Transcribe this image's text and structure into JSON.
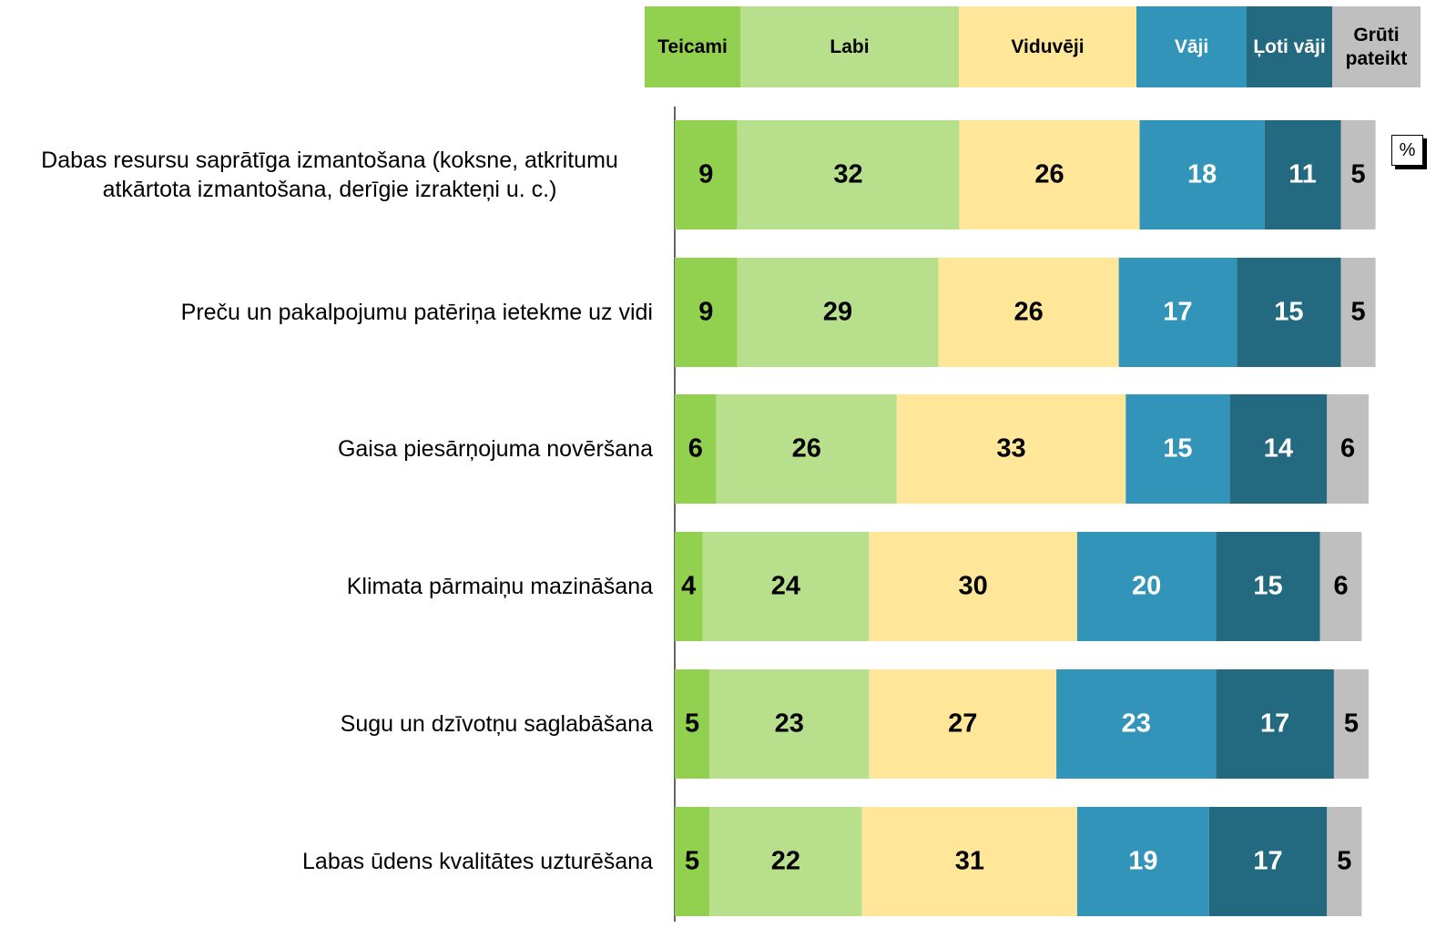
{
  "chart_data": {
    "type": "stacked_bar_horizontal",
    "unit_label": "%",
    "categories": [
      "Dabas resursu saprātīga izmantošana (koksne, atkritumu atkārtota izmantošana, derīgie izrakteņi u. c.)",
      "Preču un pakalpojumu patēriņa ietekme uz vidi",
      "Gaisa piesārņojuma novēršana",
      "Klimata pārmaiņu mazināšana",
      "Sugu un dzīvotņu saglabāšana",
      "Labas ūdens kvalitātes uzturēšana"
    ],
    "xlim": [
      0,
      100
    ],
    "series": [
      {
        "name": "Teicami",
        "color": "#92d050",
        "values": [
          9,
          9,
          6,
          4,
          5,
          5
        ]
      },
      {
        "name": "Labi",
        "color": "#b8e08c",
        "values": [
          32,
          29,
          26,
          24,
          23,
          22
        ]
      },
      {
        "name": "Viduvēji",
        "color": "#ffe699",
        "values": [
          26,
          26,
          33,
          30,
          27,
          31
        ]
      },
      {
        "name": "Vāji",
        "color": "#3194b8",
        "values": [
          18,
          17,
          15,
          20,
          23,
          19
        ]
      },
      {
        "name": "Ļoti vāji",
        "color": "#236a80",
        "values": [
          11,
          15,
          14,
          15,
          17,
          17
        ]
      },
      {
        "name": "Grūti pateikt",
        "color": "#bfbfbf",
        "values": [
          5,
          5,
          6,
          6,
          5,
          5
        ]
      }
    ]
  }
}
